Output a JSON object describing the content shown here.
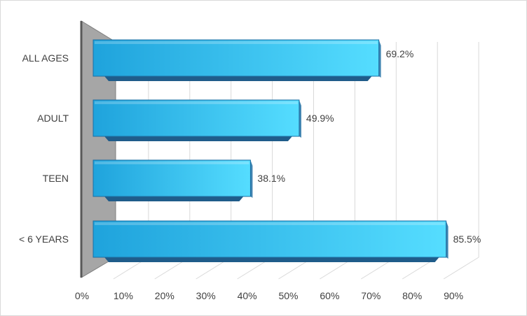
{
  "chart_data": {
    "type": "bar",
    "orientation": "horizontal",
    "style": "3d",
    "categories": [
      "ALL AGES",
      "ADULT",
      "TEEN",
      "< 6 YEARS"
    ],
    "values": [
      69.2,
      49.9,
      38.1,
      85.5
    ],
    "value_labels": [
      "69.2%",
      "49.9%",
      "38.1%",
      "85.5%"
    ],
    "xlim": [
      0,
      90
    ],
    "xticks": [
      0,
      10,
      20,
      30,
      40,
      50,
      60,
      70,
      80,
      90
    ],
    "xtick_labels": [
      "0%",
      "10%",
      "20%",
      "30%",
      "40%",
      "50%",
      "60%",
      "70%",
      "80%",
      "90%"
    ],
    "grid": true,
    "colors": {
      "bar_front_left": "#1fa3dc",
      "bar_front_right": "#55ddff",
      "bar_top": "#3fc4ff",
      "bar_edge": "#1d6fa3",
      "bar_side": "#1f5c8a",
      "back_wall": "#a6a6a6",
      "grid": "#d9d9d9"
    }
  }
}
